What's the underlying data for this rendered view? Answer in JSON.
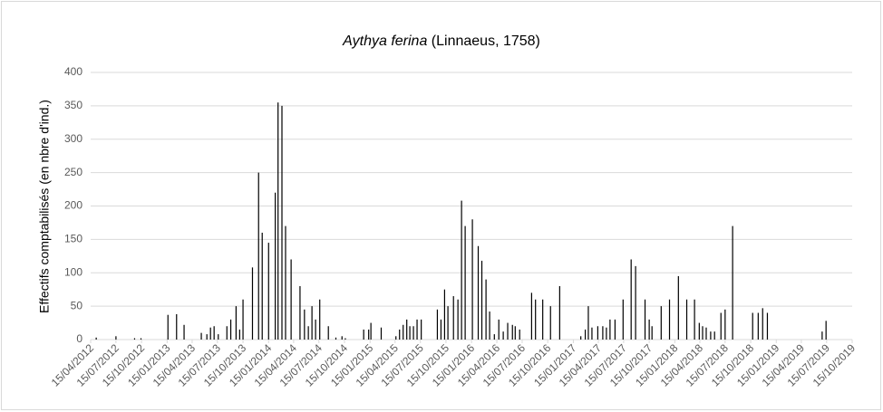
{
  "chart_data": {
    "type": "bar",
    "title": {
      "species": "Aythya ferina",
      "author": "(Linnaeus, 1758)"
    },
    "y_label": "Effectifs comptabilisés  (en nbre d'ind.)",
    "color": "#000000",
    "grid": true,
    "ylim": [
      0,
      400
    ],
    "yticks": [
      0,
      50,
      100,
      150,
      200,
      250,
      300,
      350,
      400
    ],
    "xlim": [
      "15/04/2012",
      "15/10/2019"
    ],
    "xticks": [
      "15/04/2012",
      "15/07/2012",
      "15/10/2012",
      "15/01/2013",
      "15/04/2013",
      "15/07/2013",
      "15/10/2013",
      "15/01/2014",
      "15/04/2014",
      "15/07/2014",
      "15/10/2014",
      "15/01/2015",
      "15/04/2015",
      "15/07/2015",
      "15/10/2015",
      "15/01/2016",
      "15/04/2016",
      "15/07/2016",
      "15/10/2016",
      "15/01/2017",
      "15/04/2017",
      "15/07/2017",
      "15/10/2017",
      "15/01/2018",
      "15/04/2018",
      "15/07/2018",
      "15/10/2018",
      "15/01/2019",
      "15/04/2019",
      "15/07/2019",
      "15/10/2019"
    ],
    "x": [
      "05/05/2012",
      "15/07/2012",
      "20/09/2012",
      "13/10/2012",
      "18/01/2013",
      "18/02/2013",
      "17/03/2013",
      "18/05/2013",
      "07/06/2013",
      "20/06/2013",
      "03/07/2013",
      "18/07/2013",
      "18/08/2013",
      "01/09/2013",
      "20/09/2013",
      "03/10/2013",
      "15/10/2013",
      "18/11/2013",
      "10/12/2013",
      "23/12/2013",
      "15/01/2014",
      "08/02/2014",
      "18/02/2014",
      "04/03/2014",
      "17/03/2014",
      "06/04/2014",
      "08/05/2014",
      "24/05/2014",
      "07/06/2014",
      "20/06/2014",
      "03/07/2014",
      "18/07/2014",
      "18/08/2014",
      "14/09/2014",
      "06/10/2014",
      "18/10/2014",
      "23/12/2014",
      "10/01/2015",
      "18/01/2015",
      "24/02/2015",
      "18/04/2015",
      "01/05/2015",
      "14/05/2015",
      "27/05/2015",
      "07/06/2015",
      "20/06/2015",
      "03/07/2015",
      "18/07/2015",
      "14/09/2015",
      "27/09/2015",
      "10/10/2015",
      "22/10/2015",
      "11/11/2015",
      "27/11/2015",
      "10/12/2015",
      "23/12/2015",
      "18/01/2016",
      "08/02/2016",
      "21/02/2016",
      "07/03/2016",
      "20/03/2016",
      "06/04/2016",
      "22/04/2016",
      "08/05/2016",
      "24/05/2016",
      "10/06/2016",
      "20/06/2016",
      "06/07/2016",
      "18/08/2016",
      "01/09/2016",
      "27/09/2016",
      "25/10/2016",
      "27/11/2016",
      "11/02/2017",
      "27/02/2017",
      "10/03/2017",
      "23/03/2017",
      "13/04/2017",
      "01/05/2017",
      "14/05/2017",
      "27/05/2017",
      "14/06/2017",
      "13/07/2017",
      "11/08/2017",
      "27/08/2017",
      "30/09/2017",
      "15/10/2017",
      "25/10/2017",
      "27/11/2017",
      "27/12/2017",
      "28/01/2018",
      "27/02/2018",
      "27/03/2018",
      "13/04/2018",
      "25/04/2018",
      "08/05/2018",
      "24/05/2018",
      "07/06/2018",
      "30/06/2018",
      "15/07/2018",
      "11/08/2018",
      "22/10/2018",
      "11/11/2018",
      "27/11/2018",
      "14/12/2018",
      "29/06/2019",
      "13/07/2019"
    ],
    "values": [
      3,
      5,
      2,
      2,
      37,
      38,
      22,
      10,
      8,
      18,
      20,
      8,
      20,
      30,
      50,
      15,
      60,
      108,
      250,
      160,
      145,
      220,
      355,
      350,
      170,
      120,
      80,
      45,
      20,
      50,
      30,
      60,
      20,
      3,
      5,
      2,
      15,
      15,
      25,
      18,
      5,
      15,
      22,
      30,
      20,
      20,
      30,
      30,
      45,
      30,
      75,
      50,
      65,
      60,
      208,
      170,
      180,
      140,
      118,
      90,
      42,
      8,
      30,
      12,
      25,
      22,
      20,
      15,
      70,
      60,
      60,
      50,
      80,
      5,
      15,
      50,
      18,
      20,
      20,
      18,
      30,
      30,
      60,
      120,
      110,
      60,
      30,
      20,
      50,
      60,
      95,
      60,
      60,
      25,
      20,
      18,
      12,
      12,
      40,
      45,
      170,
      40,
      40,
      47,
      40,
      12,
      28
    ]
  }
}
